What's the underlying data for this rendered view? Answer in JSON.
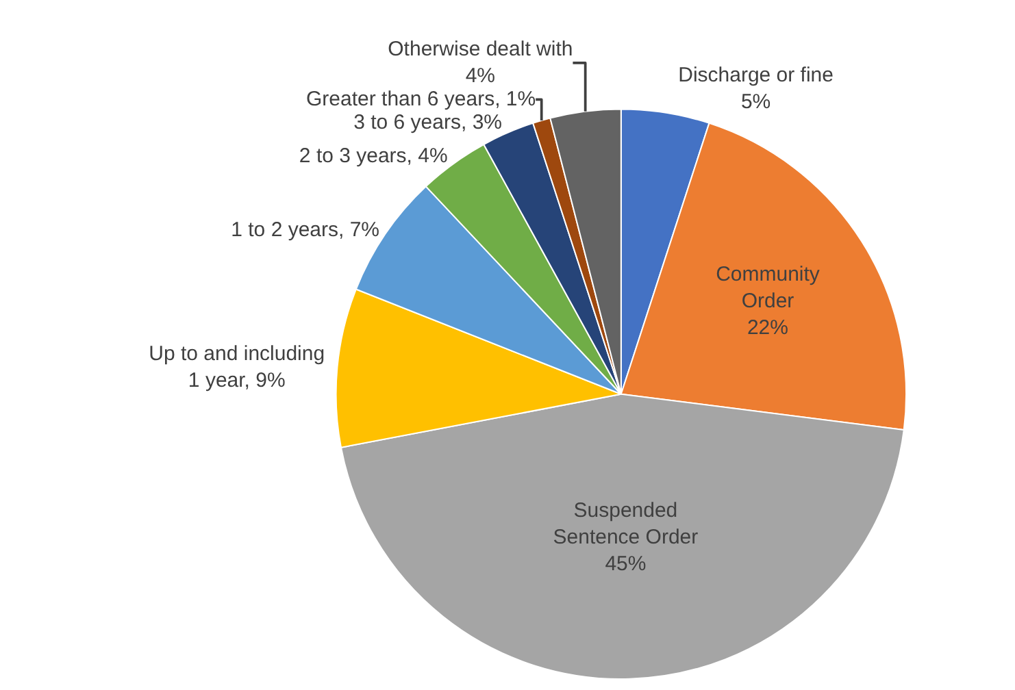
{
  "chart_data": {
    "type": "pie",
    "categories": [
      "Discharge or fine",
      "Community Order",
      "Suspended Sentence Order",
      "Up to and including 1 year",
      "1 to 2 years",
      "2 to 3 years",
      "3 to 6 years",
      "Greater than 6 years",
      "Otherwise dealt with"
    ],
    "values": [
      5,
      22,
      45,
      9,
      7,
      4,
      3,
      1,
      4
    ],
    "colors": [
      "#4472c4",
      "#ed7d31",
      "#a5a5a5",
      "#ffc000",
      "#5b9bd5",
      "#70ad47",
      "#264478",
      "#9e480e",
      "#636363"
    ],
    "value_labels": [
      "5%",
      "22%",
      "45%",
      ", 9%",
      ", 7%",
      ", 4%",
      ", 3%",
      ", 1%",
      "4%"
    ],
    "legend": false
  }
}
